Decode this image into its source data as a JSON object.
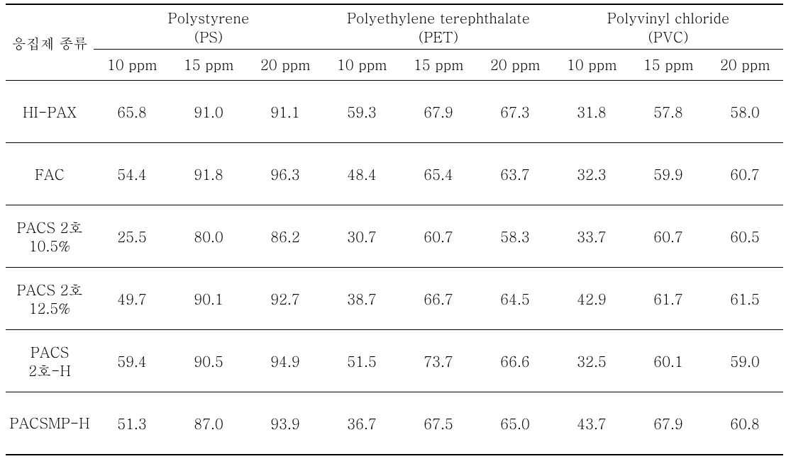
{
  "table": {
    "row_header_label": "응집제 종류",
    "groups": [
      {
        "name_line1": "Polystyrene",
        "name_line2": "(PS)"
      },
      {
        "name_line1": "Polyethylene terephthalate",
        "name_line2": "(PET)"
      },
      {
        "name_line1": "Polyvinyl chloride",
        "name_line2": "(PVC)"
      }
    ],
    "sub_headers": [
      "10 ppm",
      "15 ppm",
      "20 ppm",
      "10 ppm",
      "15 ppm",
      "20 ppm",
      "10 ppm",
      "15 ppm",
      "20 ppm"
    ],
    "rows": [
      {
        "label_lines": [
          "HI-PAX"
        ],
        "values": [
          "65.8",
          "91.0",
          "91.1",
          "59.3",
          "67.9",
          "67.3",
          "31.8",
          "57.8",
          "58.0"
        ]
      },
      {
        "label_lines": [
          "FAC"
        ],
        "values": [
          "54.4",
          "91.8",
          "96.3",
          "48.4",
          "65.4",
          "63.7",
          "32.3",
          "59.9",
          "60.7"
        ]
      },
      {
        "label_lines": [
          "PACS 2호",
          "10.5%"
        ],
        "values": [
          "25.5",
          "80.0",
          "86.2",
          "30.7",
          "60.7",
          "58.3",
          "33.7",
          "60.7",
          "60.5"
        ]
      },
      {
        "label_lines": [
          "PACS 2호",
          "12.5%"
        ],
        "values": [
          "49.7",
          "90.1",
          "92.7",
          "38.7",
          "66.7",
          "64.5",
          "42.9",
          "61.7",
          "61.5"
        ]
      },
      {
        "label_lines": [
          "PACS",
          "2호-H"
        ],
        "values": [
          "59.4",
          "90.5",
          "94.9",
          "51.5",
          "73.7",
          "66.6",
          "32.5",
          "60.1",
          "59.0"
        ]
      },
      {
        "label_lines": [
          "PACSMP-H"
        ],
        "values": [
          "51.3",
          "87.0",
          "93.9",
          "36.7",
          "67.5",
          "65.0",
          "43.7",
          "67.9",
          "60.8"
        ]
      }
    ],
    "colors": {
      "text": "#000000",
      "background": "#ffffff",
      "border": "#000000"
    },
    "font_size_pt": 15
  }
}
